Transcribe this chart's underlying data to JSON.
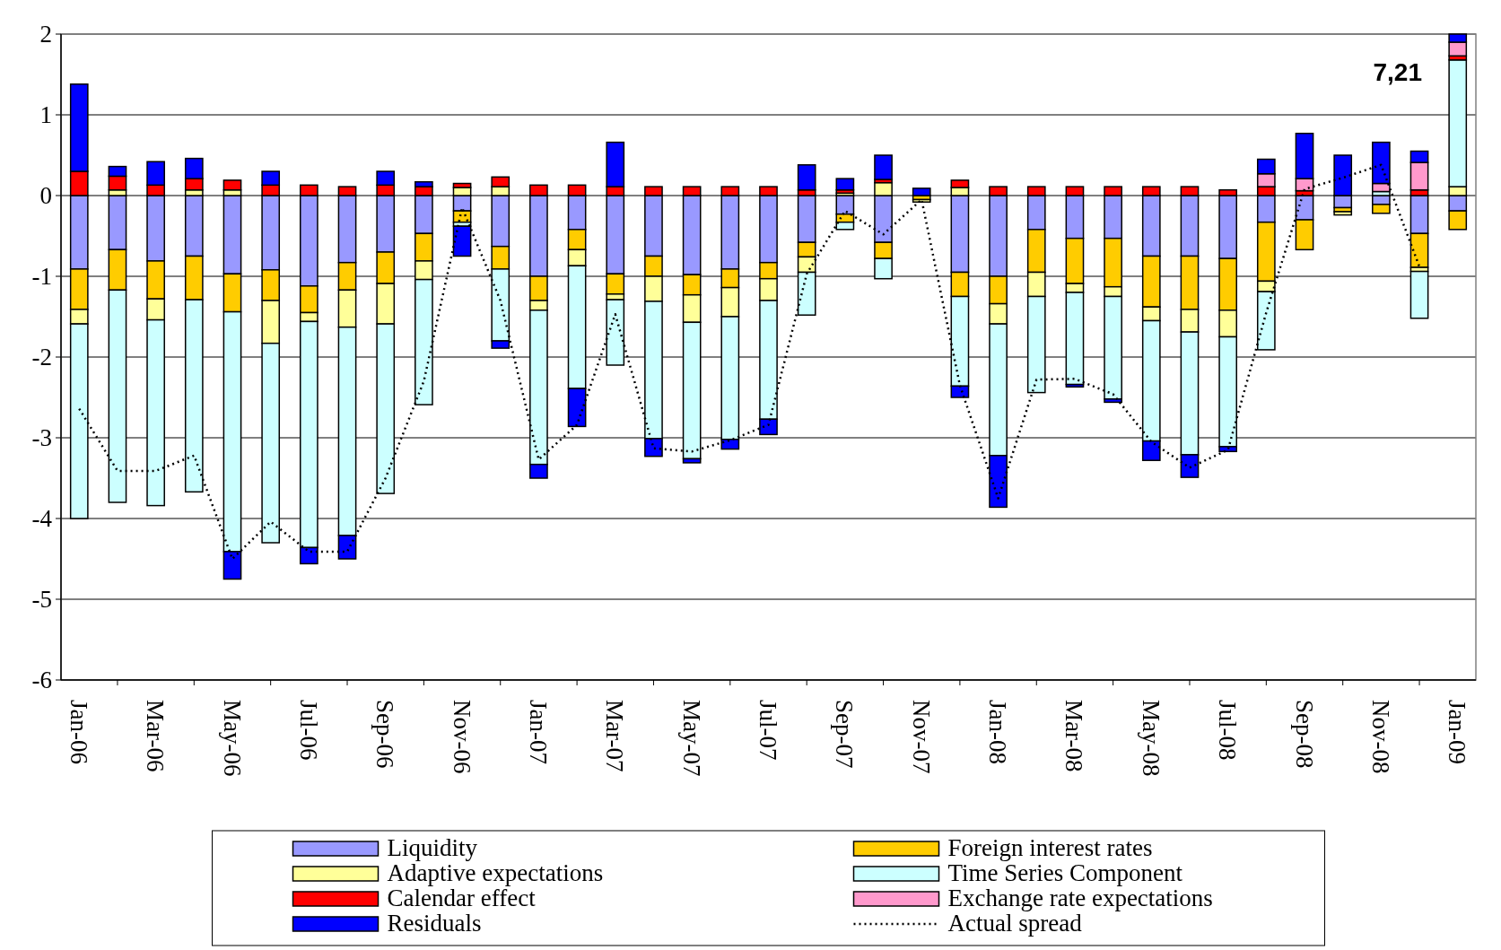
{
  "chart_data": {
    "type": "bar",
    "stacked": true,
    "categories": [
      "Jan-06",
      null,
      "Mar-06",
      null,
      "May-06",
      null,
      "Jul-06",
      null,
      "Sep-06",
      null,
      "Nov-06",
      null,
      "Jan-07",
      null,
      "Mar-07",
      null,
      "May-07",
      null,
      "Jul-07",
      null,
      "Sep-07",
      null,
      "Nov-07",
      null,
      "Jan-08",
      null,
      "Mar-08",
      null,
      "May-08",
      null,
      "Jul-08",
      null,
      "Sep-08",
      null,
      "Nov-08",
      null,
      "Jan-09"
    ],
    "series": [
      {
        "name": "Liquidity",
        "color": "#9999ff",
        "values": [
          -0.91,
          -0.67,
          -0.81,
          -0.75,
          -0.97,
          -0.92,
          -1.12,
          -0.83,
          -0.7,
          -0.47,
          -0.19,
          -0.63,
          -1.0,
          -0.42,
          -0.97,
          -0.75,
          -0.98,
          -0.91,
          -0.83,
          -0.58,
          -0.23,
          -0.58,
          null,
          -0.95,
          -1.0,
          -0.42,
          -0.53,
          -0.53,
          -0.75,
          -0.75,
          -0.78,
          -0.33,
          -0.3,
          -0.15,
          -0.11,
          -0.47,
          -0.19
        ]
      },
      {
        "name": "Foreign interest rates",
        "color": "#ffcc00",
        "values": [
          -0.5,
          -0.5,
          -0.47,
          -0.54,
          -0.47,
          -0.38,
          -0.33,
          -0.34,
          -0.39,
          -0.34,
          -0.14,
          -0.28,
          -0.3,
          -0.25,
          -0.25,
          -0.25,
          -0.25,
          -0.23,
          -0.2,
          -0.18,
          -0.1,
          -0.2,
          -0.05,
          -0.3,
          -0.34,
          -0.53,
          -0.56,
          -0.6,
          -0.63,
          -0.66,
          -0.64,
          -0.73,
          -0.37,
          -0.05,
          -0.11,
          -0.42,
          -0.23
        ]
      },
      {
        "name": "Adaptive expectations",
        "color": "#ffff99",
        "values": [
          -0.18,
          0.07,
          -0.26,
          0.07,
          0.07,
          -0.53,
          -0.11,
          -0.46,
          -0.5,
          -0.23,
          0.1,
          0.11,
          -0.12,
          -0.2,
          -0.07,
          -0.31,
          -0.34,
          -0.36,
          -0.27,
          -0.19,
          0.03,
          0.16,
          -0.03,
          0.1,
          -0.25,
          -0.3,
          -0.11,
          -0.12,
          -0.17,
          -0.28,
          -0.33,
          -0.13,
          null,
          -0.04,
          null,
          -0.05,
          0.11
        ]
      },
      {
        "name": "Time Series Component",
        "color": "#ccffff",
        "values": [
          -2.41,
          -2.63,
          -2.3,
          -2.38,
          -2.97,
          -2.47,
          -2.8,
          -2.58,
          -2.1,
          -1.55,
          -0.05,
          -0.89,
          -1.91,
          -1.52,
          -0.81,
          -1.7,
          -1.69,
          -1.52,
          -1.47,
          -0.53,
          -0.09,
          -0.25,
          null,
          -1.11,
          -1.63,
          -1.19,
          -1.14,
          -1.27,
          -1.49,
          -1.52,
          -1.36,
          -0.72,
          null,
          null,
          0.05,
          -0.58,
          1.57
        ]
      },
      {
        "name": "Calendar effect",
        "color": "#ff0000",
        "values": [
          0.3,
          0.17,
          0.13,
          0.14,
          0.12,
          0.13,
          0.13,
          0.11,
          0.13,
          0.11,
          0.05,
          0.12,
          0.13,
          0.13,
          0.11,
          0.11,
          0.11,
          0.11,
          0.11,
          0.07,
          0.04,
          0.04,
          null,
          0.09,
          0.11,
          0.11,
          0.11,
          0.11,
          0.11,
          0.11,
          0.07,
          0.11,
          0.06,
          null,
          null,
          0.07,
          0.05
        ]
      },
      {
        "name": "Exchange rate expectations",
        "color": "#ff99cc",
        "values": [
          null,
          null,
          null,
          null,
          null,
          null,
          null,
          null,
          null,
          null,
          null,
          null,
          null,
          null,
          null,
          null,
          null,
          null,
          null,
          null,
          null,
          null,
          null,
          null,
          null,
          null,
          null,
          null,
          null,
          null,
          null,
          0.16,
          0.15,
          null,
          0.1,
          0.34,
          0.17
        ]
      },
      {
        "name": "Residuals",
        "color": "#0000ff",
        "values": [
          1.08,
          0.12,
          0.29,
          0.25,
          -0.34,
          0.17,
          -0.2,
          -0.29,
          0.17,
          0.06,
          -0.37,
          -0.09,
          -0.17,
          -0.47,
          0.55,
          -0.22,
          -0.05,
          -0.12,
          -0.19,
          0.31,
          0.14,
          0.3,
          0.09,
          -0.14,
          -0.64,
          null,
          -0.03,
          -0.04,
          -0.24,
          -0.28,
          -0.06,
          0.18,
          0.56,
          0.5,
          0.51,
          0.14,
          0.1
        ]
      },
      {
        "name": "Actual spread",
        "type": "line",
        "color": "#000000",
        "line_style": "dotted",
        "marker": "none",
        "values": [
          -2.64,
          -3.41,
          -3.41,
          -3.22,
          -4.5,
          -4.04,
          -4.41,
          -4.41,
          -3.5,
          -2.3,
          -0.15,
          -1.3,
          -3.27,
          -2.84,
          -1.47,
          -3.13,
          -3.17,
          -3.03,
          -2.84,
          -0.97,
          -0.19,
          -0.48,
          -0.05,
          -2.35,
          -3.75,
          -2.28,
          -2.27,
          -2.46,
          -3.05,
          -3.37,
          -3.15,
          -1.45,
          0.08,
          0.22,
          0.38,
          -0.88,
          null
        ]
      }
    ],
    "ylim": [
      -6,
      2
    ],
    "yticks": [
      -6,
      -5,
      -4,
      -3,
      -2,
      -1,
      0,
      1,
      2
    ],
    "grid": "y",
    "legend": "bottom",
    "annotations": [
      "7,21"
    ]
  }
}
